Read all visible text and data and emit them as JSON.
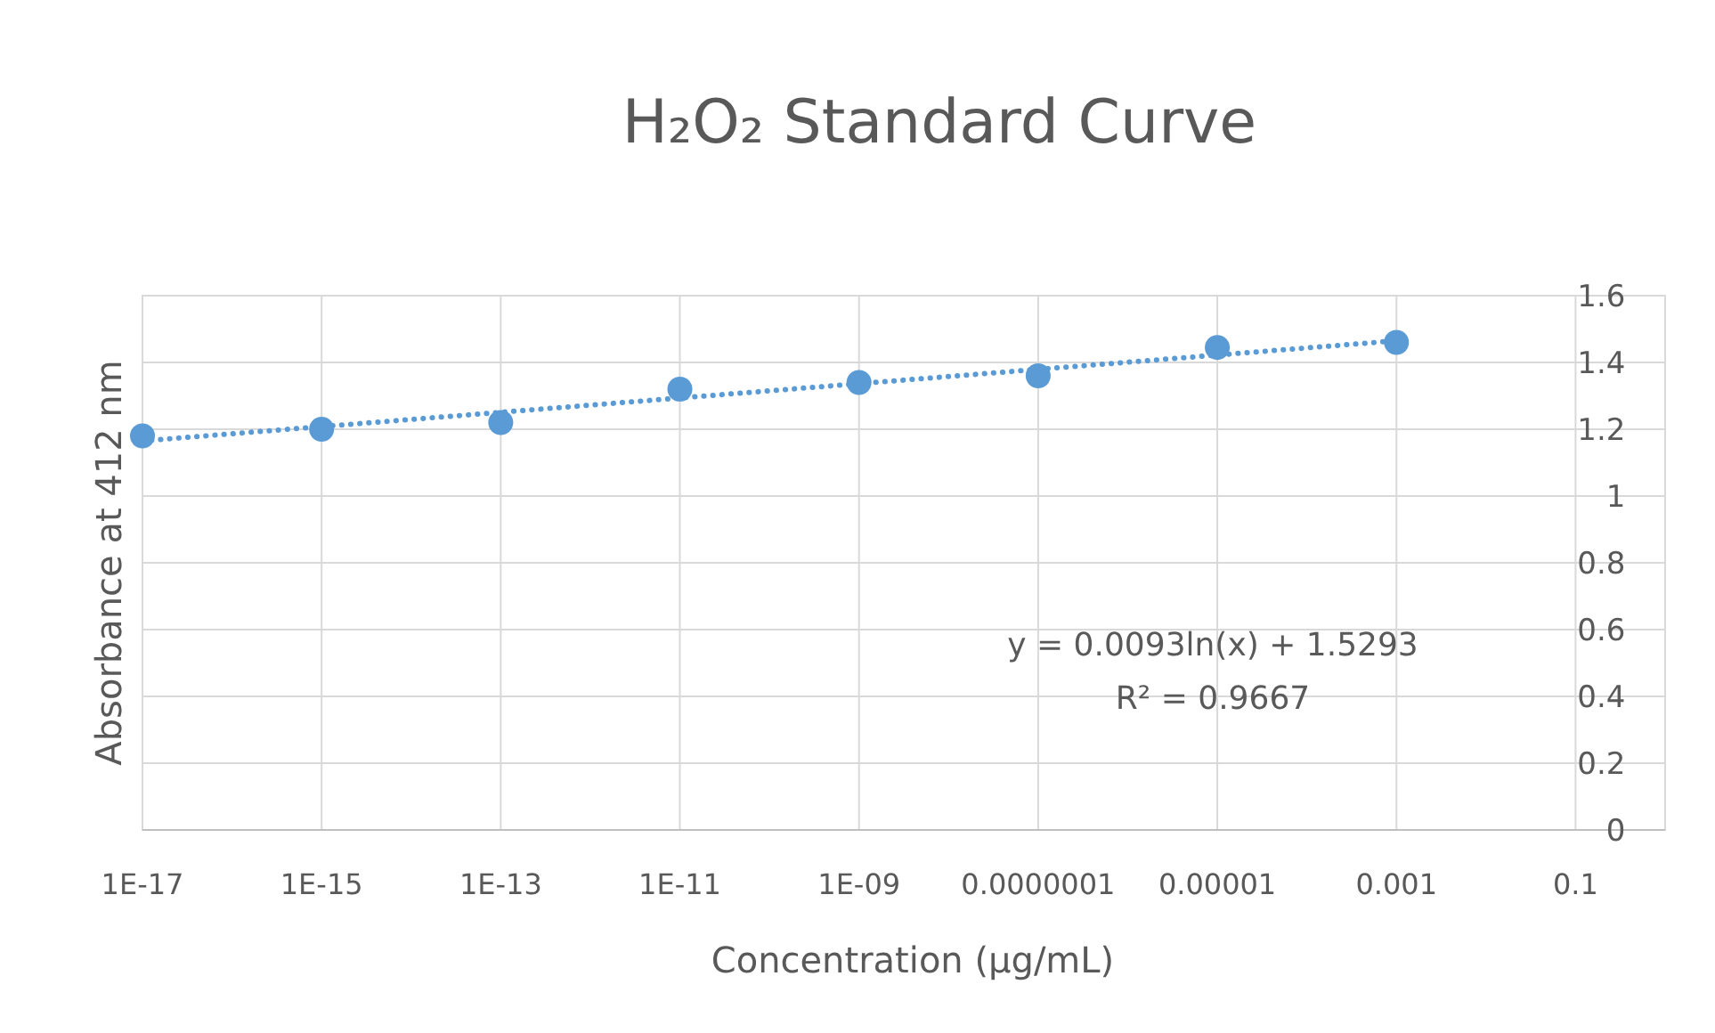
{
  "chart_data": {
    "type": "scatter",
    "title": "H₂O₂ Standard Curve",
    "xlabel": "Concentration (μg/mL)",
    "ylabel": "Absorbance at 412 nm",
    "log": "x",
    "xlim": [
      1e-17,
      1
    ],
    "ylim": [
      0,
      1.6
    ],
    "xticks": [
      {
        "value": 1e-17,
        "label": "1E-17"
      },
      {
        "value": 1e-15,
        "label": "1E-15"
      },
      {
        "value": 1e-13,
        "label": "1E-13"
      },
      {
        "value": 1e-11,
        "label": "1E-11"
      },
      {
        "value": 1e-09,
        "label": "1E-09"
      },
      {
        "value": 1e-07,
        "label": "0.0000001"
      },
      {
        "value": 1e-05,
        "label": "0.00001"
      },
      {
        "value": 0.001,
        "label": "0.001"
      },
      {
        "value": 0.1,
        "label": "0.1"
      }
    ],
    "yticks": [
      0,
      0.2,
      0.4,
      0.6,
      0.8,
      1,
      1.2,
      1.4,
      1.6
    ],
    "grid": true,
    "series": [
      {
        "color": "#5b9bd5",
        "marker": "circle",
        "x": [
          1e-17,
          1e-15,
          1e-13,
          1e-11,
          1e-09,
          1e-07,
          1e-05,
          0.001
        ],
        "values": [
          1.18,
          1.2,
          1.22,
          1.32,
          1.34,
          1.36,
          1.445,
          1.46
        ]
      },
      {
        "type": "line",
        "color": "#5b9bd5",
        "marker": "none",
        "line_style": "dotted",
        "x": [
          1e-17,
          0.001
        ],
        "values": [
          1.165,
          1.465
        ]
      }
    ],
    "annotations": [
      "y = 0.0093ln(x) + 1.5293",
      "R² = 0.9667"
    ]
  }
}
